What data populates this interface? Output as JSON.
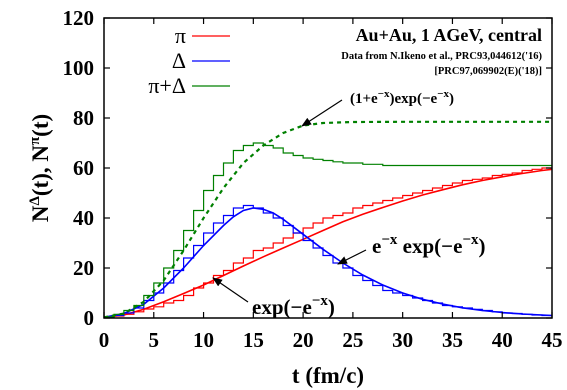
{
  "chart_data": {
    "type": "line",
    "title": "Au+Au, 1 AGeV, central",
    "source_line1": "Data from N.Ikeno et al., PRC93,044612('16)",
    "source_line2": "[PRC97,069902(E)('18)]",
    "xlabel": "t (fm/c)",
    "ylabel": "N",
    "xlim": [
      0,
      45
    ],
    "ylim": [
      0,
      120
    ],
    "xticks": [
      "0",
      "5",
      "10",
      "15",
      "20",
      "25",
      "30",
      "35",
      "40",
      "45"
    ],
    "yticks": [
      "0",
      "20",
      "40",
      "60",
      "80",
      "100",
      "120"
    ],
    "grid": false,
    "legend_position": "top-left",
    "series": [
      {
        "name": "π",
        "color": "#ff0000",
        "step_x": [
          0,
          1,
          2,
          3,
          4,
          5,
          6,
          7,
          8,
          9,
          10,
          11,
          12,
          13,
          14,
          15,
          16,
          17,
          18,
          19,
          20,
          21,
          22,
          23,
          24,
          25,
          26,
          27,
          28,
          29,
          30,
          31,
          32,
          33,
          34,
          35,
          36,
          37,
          38,
          39,
          40,
          41,
          42,
          43,
          44,
          45
        ],
        "step_y": [
          0.2,
          0.8,
          1.5,
          2.5,
          3.6,
          4.5,
          6,
          7,
          9,
          12,
          14,
          17,
          19,
          22,
          24,
          27,
          28,
          30,
          32,
          34,
          36,
          38,
          40,
          41,
          42,
          44,
          45,
          46,
          47,
          48,
          49,
          50,
          51,
          52,
          53,
          54,
          55,
          55.5,
          56,
          57,
          57.5,
          58,
          59,
          59.5,
          60,
          60
        ],
        "curve": [
          [
            0,
            0.3
          ],
          [
            2,
            1.2
          ],
          [
            4,
            3.5
          ],
          [
            6,
            6.5
          ],
          [
            8,
            9.8
          ],
          [
            10,
            13.2
          ],
          [
            12,
            17
          ],
          [
            14,
            20.8
          ],
          [
            16,
            24.5
          ],
          [
            18,
            28
          ],
          [
            20,
            31.5
          ],
          [
            22,
            35
          ],
          [
            24,
            38.5
          ],
          [
            26,
            41.5
          ],
          [
            28,
            44.2
          ],
          [
            30,
            46.8
          ],
          [
            32,
            49.2
          ],
          [
            34,
            51.3
          ],
          [
            36,
            53.3
          ],
          [
            38,
            55
          ],
          [
            40,
            56.5
          ],
          [
            42,
            57.8
          ],
          [
            44,
            59
          ],
          [
            45,
            59.5
          ]
        ]
      },
      {
        "name": "Δ",
        "color": "#0000ff",
        "step_x": [
          0,
          1,
          2,
          3,
          4,
          5,
          6,
          7,
          8,
          9,
          10,
          11,
          12,
          13,
          14,
          15,
          16,
          17,
          18,
          19,
          20,
          21,
          22,
          23,
          24,
          25,
          26,
          27,
          28,
          29,
          30,
          31,
          32,
          33,
          34,
          35,
          36,
          37,
          38,
          39,
          40,
          41,
          42,
          43,
          44,
          45
        ],
        "step_y": [
          0.3,
          1,
          2,
          4,
          7,
          10,
          14,
          19,
          24,
          29,
          34,
          38,
          41,
          44,
          45,
          44,
          42,
          40,
          37,
          34,
          31,
          28,
          25,
          22,
          20,
          17,
          15,
          13,
          11,
          10,
          9,
          8,
          7,
          6,
          5,
          4.5,
          4,
          3.5,
          3,
          2.5,
          2,
          1.8,
          1.5,
          1.2,
          1,
          1
        ],
        "curve": [
          [
            0,
            0.3
          ],
          [
            2,
            1.8
          ],
          [
            4,
            5.5
          ],
          [
            6,
            12
          ],
          [
            8,
            20
          ],
          [
            10,
            29
          ],
          [
            12,
            37
          ],
          [
            13,
            40.5
          ],
          [
            14,
            43
          ],
          [
            15,
            44
          ],
          [
            16,
            43.5
          ],
          [
            17,
            42
          ],
          [
            18,
            39.5
          ],
          [
            19,
            36.5
          ],
          [
            20,
            33.5
          ],
          [
            22,
            27.5
          ],
          [
            24,
            22
          ],
          [
            26,
            17.2
          ],
          [
            28,
            13.2
          ],
          [
            30,
            10
          ],
          [
            32,
            7.5
          ],
          [
            34,
            5.6
          ],
          [
            36,
            4.1
          ],
          [
            38,
            3
          ],
          [
            40,
            2.2
          ],
          [
            42,
            1.6
          ],
          [
            45,
            1
          ]
        ]
      },
      {
        "name": "π+Δ",
        "color": "#008000",
        "step_x": [
          0,
          1,
          2,
          3,
          4,
          5,
          6,
          7,
          8,
          9,
          10,
          11,
          12,
          13,
          14,
          15,
          16,
          17,
          18,
          19,
          20,
          21,
          22,
          23,
          24,
          25,
          26,
          27,
          28,
          29,
          30,
          31,
          32,
          33,
          34,
          35,
          36,
          37,
          38,
          39,
          40,
          41,
          42,
          43,
          44,
          45
        ],
        "step_y": [
          0.5,
          1.5,
          3,
          5,
          9,
          14,
          20,
          27,
          35,
          43,
          51,
          57,
          62,
          67,
          69,
          70,
          69,
          68,
          66,
          65,
          64,
          63.5,
          63,
          62.5,
          62,
          62,
          61.5,
          61.5,
          61,
          61,
          61,
          61,
          61,
          61,
          61,
          61,
          61,
          61,
          61,
          61,
          61,
          61,
          61,
          61,
          61,
          61
        ],
        "curve": [
          [
            0,
            0.3
          ],
          [
            2,
            1.8
          ],
          [
            4,
            6.5
          ],
          [
            6,
            15
          ],
          [
            8,
            27
          ],
          [
            10,
            40
          ],
          [
            12,
            52
          ],
          [
            14,
            62
          ],
          [
            16,
            69
          ],
          [
            18,
            74
          ],
          [
            20,
            77
          ],
          [
            22,
            78
          ],
          [
            25,
            78.4
          ],
          [
            30,
            78.5
          ],
          [
            35,
            78.5
          ],
          [
            40,
            78.5
          ],
          [
            45,
            78.5
          ]
        ]
      }
    ],
    "annotations": [
      {
        "text_main": "(1+e",
        "sup1": "−x",
        "text_mid": ")exp(−e",
        "sup2": "−x",
        "text_end": ")"
      },
      {
        "text_main": "e",
        "sup1": "−x",
        "text_mid": " exp(−e",
        "sup2": "−x",
        "text_end": ")"
      },
      {
        "text_main": "exp(−e",
        "sup1": "−x",
        "text_mid": "",
        "sup2": "",
        "text_end": ")"
      }
    ],
    "ylabel_parts": {
      "p1": "N",
      "s1": "Δ",
      "p2": "(t), N",
      "s2": "π",
      "p3": "(t)"
    }
  }
}
